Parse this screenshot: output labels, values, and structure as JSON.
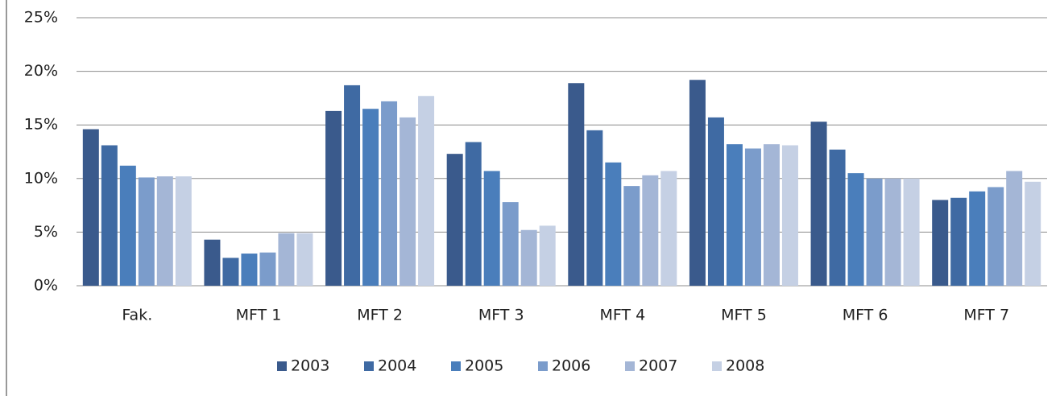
{
  "chart_data": {
    "type": "bar",
    "categories": [
      "Fak.",
      "MFT 1",
      "MFT 2",
      "MFT 3",
      "MFT 4",
      "MFT 5",
      "MFT 6",
      "MFT 7"
    ],
    "series": [
      {
        "name": "2003",
        "color": "#3a5a8c",
        "values": [
          14.6,
          4.3,
          16.3,
          12.3,
          18.9,
          19.2,
          15.3,
          8.0
        ]
      },
      {
        "name": "2004",
        "color": "#3f6aa3",
        "values": [
          13.1,
          2.6,
          18.7,
          13.4,
          14.5,
          15.7,
          12.7,
          8.2
        ]
      },
      {
        "name": "2005",
        "color": "#4a7ebb",
        "values": [
          11.2,
          3.0,
          16.5,
          10.7,
          11.5,
          13.2,
          10.5,
          8.8
        ]
      },
      {
        "name": "2006",
        "color": "#7b9ccb",
        "values": [
          10.1,
          3.1,
          17.2,
          7.8,
          9.3,
          12.8,
          10.0,
          9.2
        ]
      },
      {
        "name": "2007",
        "color": "#a4b6d6",
        "values": [
          10.2,
          4.9,
          15.7,
          5.2,
          10.3,
          13.2,
          10.0,
          10.7
        ]
      },
      {
        "name": "2008",
        "color": "#c5d0e4",
        "values": [
          10.2,
          4.9,
          17.7,
          5.6,
          10.7,
          13.1,
          10.0,
          9.7
        ]
      }
    ],
    "ylim": [
      0,
      25
    ],
    "yticks": [
      {
        "value": 0,
        "label": "0%"
      },
      {
        "value": 5,
        "label": "5%"
      },
      {
        "value": 10,
        "label": "10%"
      },
      {
        "value": 15,
        "label": "15%"
      },
      {
        "value": 20,
        "label": "20%"
      },
      {
        "value": 25,
        "label": "25%"
      }
    ],
    "grid": true,
    "legend": "bottom"
  }
}
